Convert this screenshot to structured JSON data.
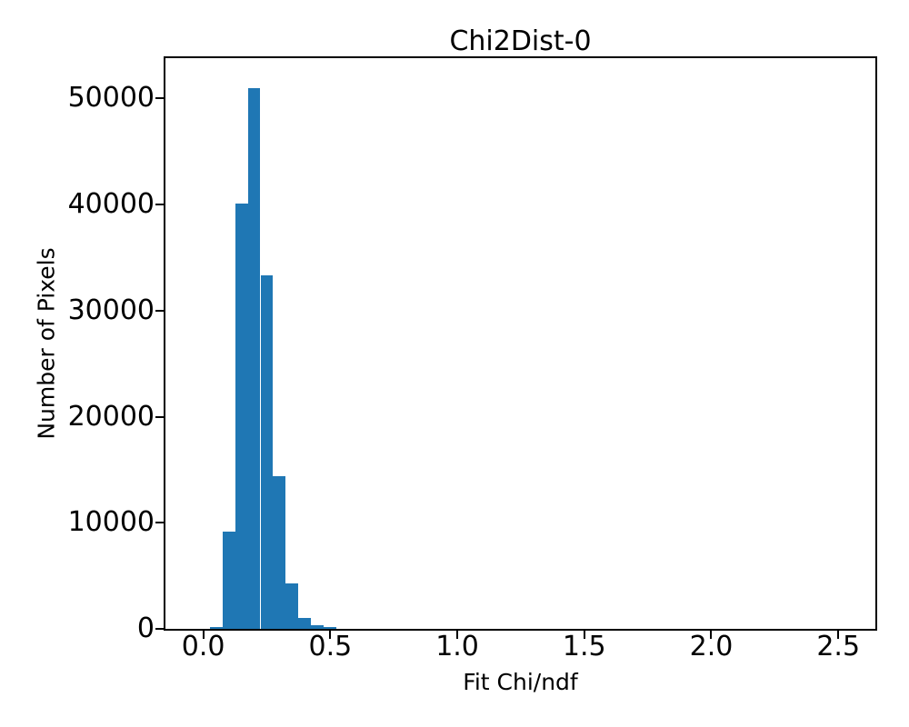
{
  "figure": {
    "background_color": "#ffffff",
    "axis_color": "#000000",
    "bar_color": "#1f77b4"
  },
  "chart_data": {
    "type": "bar",
    "subtype": "histogram",
    "title": "Chi2Dist-0",
    "xlabel": "Fit Chi/ndf",
    "ylabel": "Number of Pixels",
    "bin_width": 0.05,
    "bin_edges": [
      0.025,
      0.075,
      0.125,
      0.175,
      0.225,
      0.275,
      0.325,
      0.375,
      0.425,
      0.475,
      0.525
    ],
    "counts": [
      200,
      9150,
      40100,
      51000,
      33350,
      14430,
      4280,
      1050,
      340,
      150
    ],
    "xlim": [
      -0.149,
      2.646
    ],
    "ylim": [
      0,
      53800
    ],
    "xticks": [
      0.0,
      0.5,
      1.0,
      1.5,
      2.0,
      2.5
    ],
    "xtick_labels": [
      "0.0",
      "0.5",
      "1.0",
      "1.5",
      "2.0",
      "2.5"
    ],
    "yticks": [
      0,
      10000,
      20000,
      30000,
      40000,
      50000
    ],
    "ytick_labels": [
      "0",
      "10000",
      "20000",
      "30000",
      "40000",
      "50000"
    ],
    "grid": false,
    "legend": null
  }
}
